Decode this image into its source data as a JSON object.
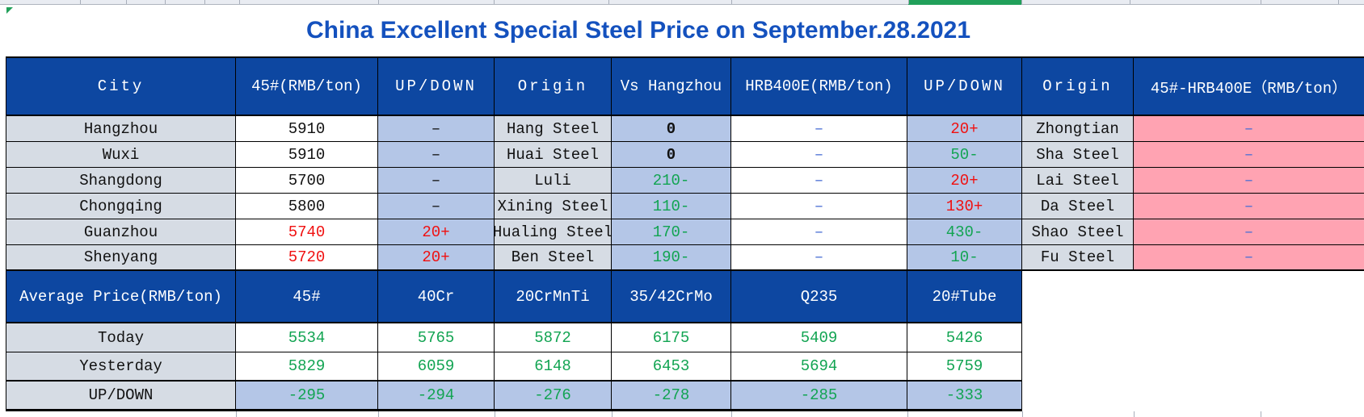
{
  "title": "China Excellent Special Steel Price on September.28.2021",
  "price_table": {
    "headers": [
      "City",
      "45#(RMB/ton)",
      "UP/DOWN",
      "Origin",
      "Vs Hangzhou",
      "HRB400E(RMB/ton)",
      "UP/DOWN",
      "Origin",
      "45#-HRB400E（RMB/ton）"
    ],
    "rows": [
      [
        "Hangzhou",
        "5910",
        "–",
        "Hang Steel",
        "0",
        "–",
        "20+",
        "Zhongtian",
        "–"
      ],
      [
        "Wuxi",
        "5910",
        "–",
        "Huai Steel",
        "0",
        "–",
        "50-",
        "Sha Steel",
        "–"
      ],
      [
        "Shangdong",
        "5700",
        "–",
        "Luli",
        "210-",
        "–",
        "20+",
        "Lai Steel",
        "–"
      ],
      [
        "Chongqing",
        "5800",
        "–",
        "Xining Steel",
        "110-",
        "–",
        "130+",
        "Da Steel",
        "–"
      ],
      [
        "Guanzhou",
        "5740",
        "20+",
        "Hualing Steel",
        "170-",
        "–",
        "430-",
        "Shao Steel",
        "–"
      ],
      [
        "Shenyang",
        "5720",
        "20+",
        "Ben Steel",
        "190-",
        "–",
        "10-",
        "Fu Steel",
        "–"
      ]
    ]
  },
  "average_table": {
    "label_header": "Average Price(RMB/ton)",
    "grade_headers": [
      "45#",
      "40Cr",
      "20CrMnTi",
      "35/42CrMo",
      "Q235",
      "20#Tube"
    ],
    "rows": [
      {
        "label": "Today",
        "values": [
          "5534",
          "5765",
          "5872",
          "6175",
          "5409",
          "5426"
        ]
      },
      {
        "label": "Yesterday",
        "values": [
          "5829",
          "6059",
          "6148",
          "6453",
          "5694",
          "5759"
        ]
      },
      {
        "label": "UP/DOWN",
        "values": [
          "-295",
          "-294",
          "-276",
          "-278",
          "-285",
          "-333"
        ]
      }
    ]
  },
  "colors": {
    "title_text": "#1451BE",
    "header_bg": "#0D47A1",
    "header_text": "#FFFFFF",
    "light_blue_bg": "#B4C6E7",
    "light_gray_bg": "#D6DCE4",
    "pink_bg": "#FFA3B2",
    "green_text": "#12A452",
    "red_text": "#F01010",
    "blue_dash": "#4A6FD4",
    "grid_green": "#21A05A"
  }
}
